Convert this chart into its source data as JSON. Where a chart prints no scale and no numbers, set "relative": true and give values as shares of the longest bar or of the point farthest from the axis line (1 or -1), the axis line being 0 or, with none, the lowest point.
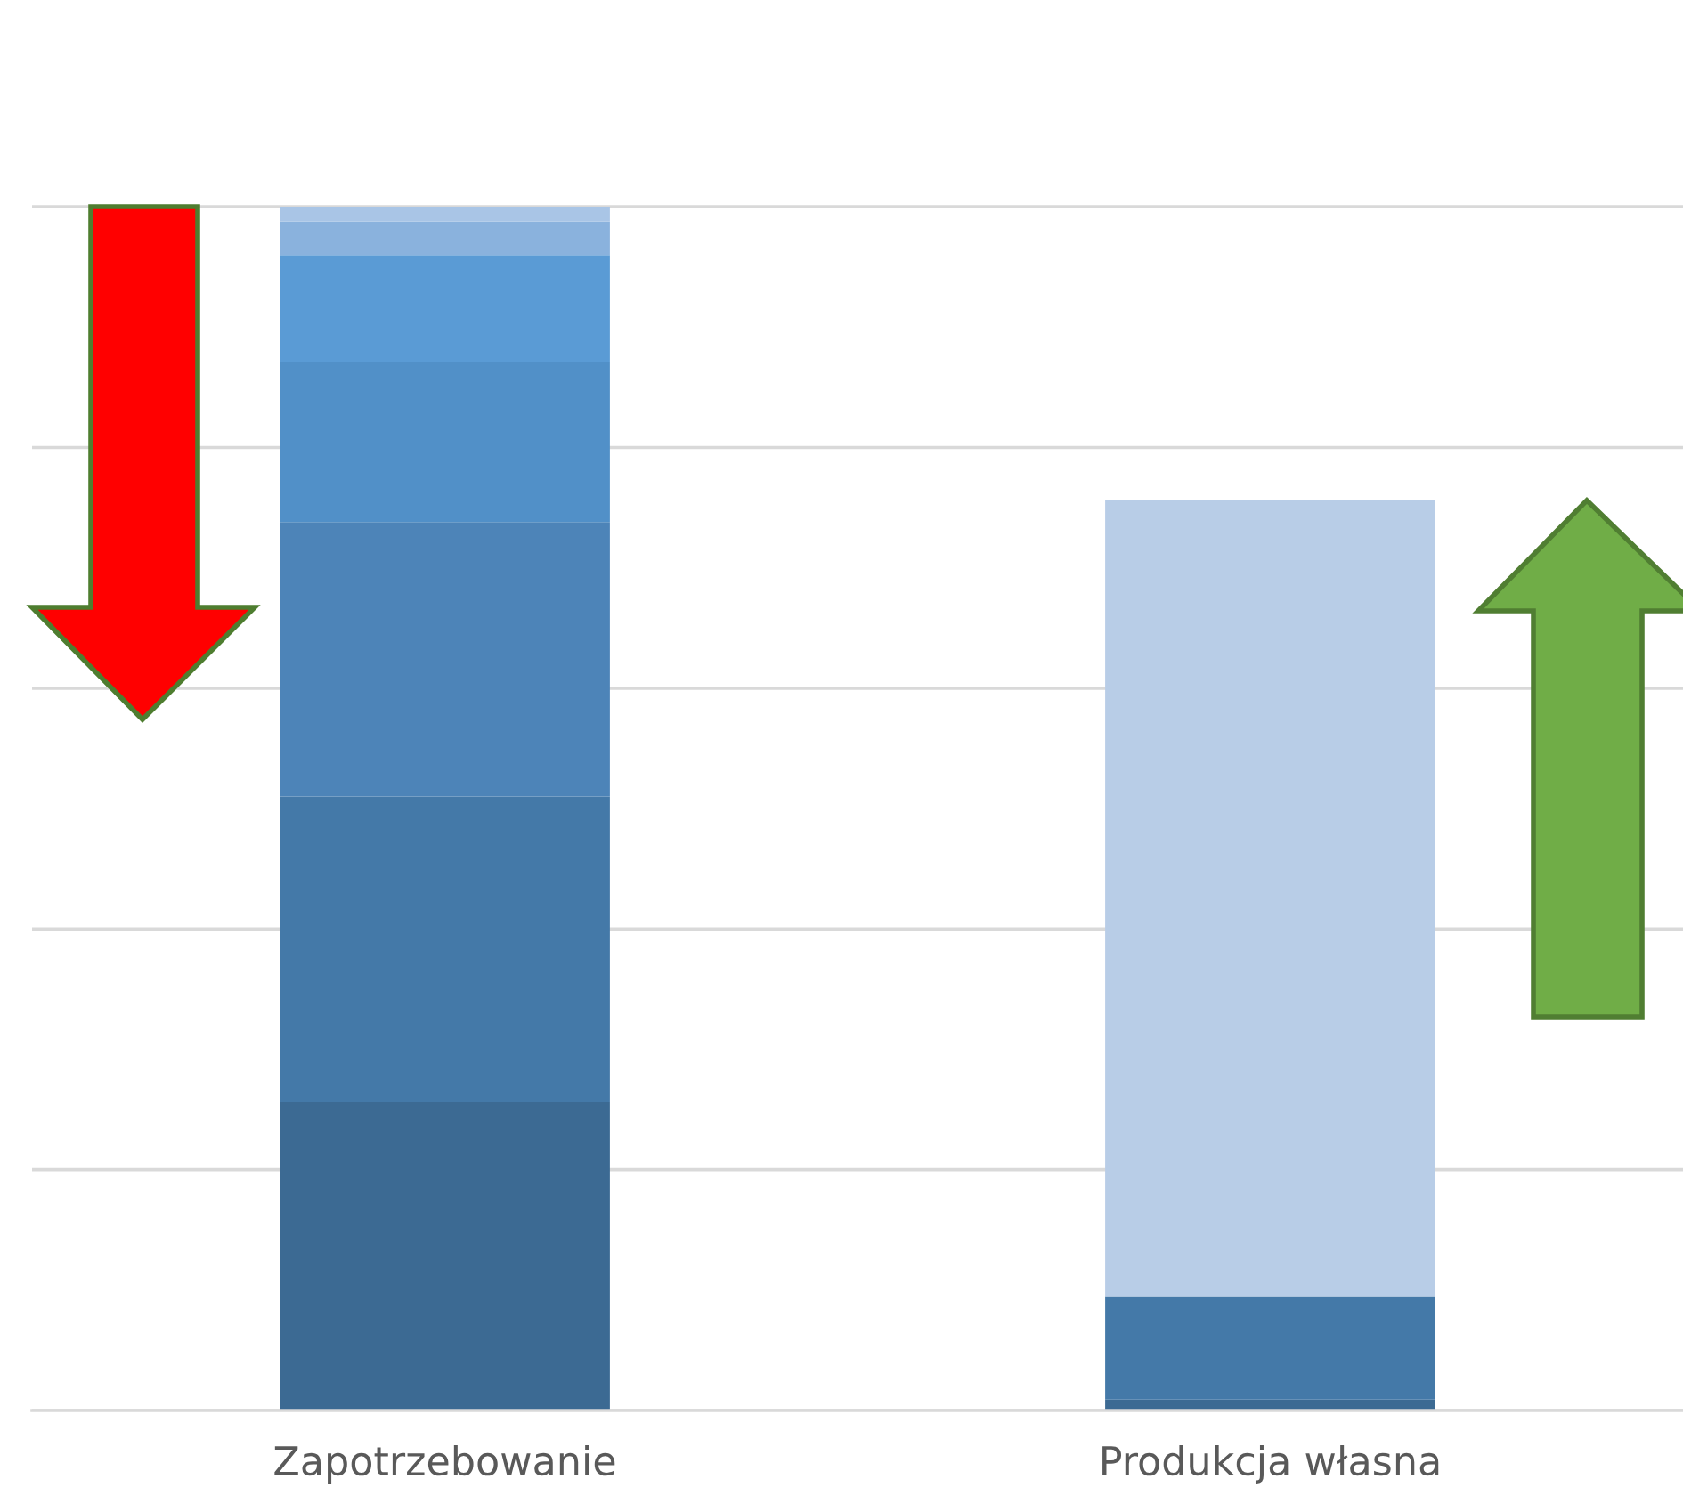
{
  "chart_data": {
    "type": "bar",
    "stacked": true,
    "relative": true,
    "grid": "y",
    "categories": [
      "Zapotrzebowanie",
      "Produkcja własna"
    ],
    "series": [
      {
        "colors": [
          "#3c6a93",
          "#3c6a93"
        ],
        "values": [
          0.256,
          0.009
        ]
      },
      {
        "colors": [
          "#4479a8",
          "#4479a8"
        ],
        "values": [
          0.254,
          0.086
        ]
      },
      {
        "colors": [
          "#4d84b8",
          "#b8cde7"
        ],
        "values": [
          0.228,
          0.661
        ]
      },
      {
        "colors": [
          "#5190c8",
          "#5190c8"
        ],
        "values": [
          0.133,
          null
        ]
      },
      {
        "colors": [
          "#5a9bd5",
          "#5a9bd5"
        ],
        "values": [
          0.089,
          null
        ]
      },
      {
        "colors": [
          "#8ab2dd",
          "#8ab2dd"
        ],
        "values": [
          0.028,
          null
        ]
      },
      {
        "colors": [
          "#a9c5e6",
          "#a9c5e6"
        ],
        "values": [
          0.012,
          null
        ]
      }
    ]
  }
}
